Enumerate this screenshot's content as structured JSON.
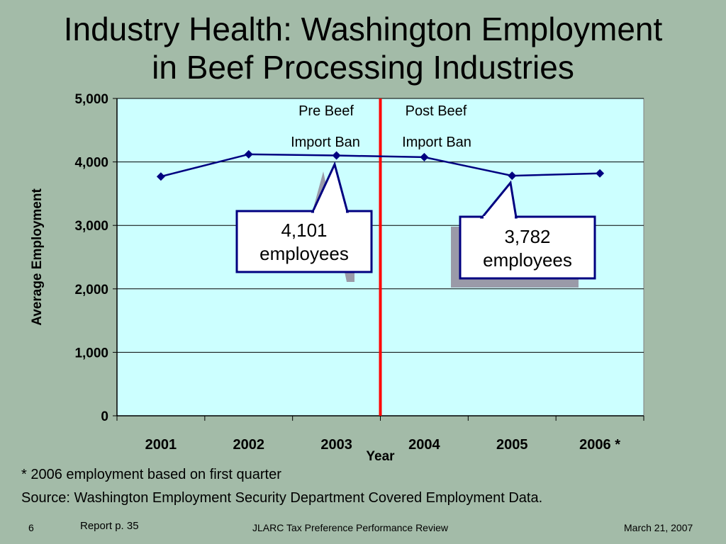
{
  "slide": {
    "title_line1": "Industry Health: Washington Employment",
    "title_line2": "in Beef Processing Industries",
    "footnote": "* 2006 employment based on first quarter",
    "source": "Source: Washington Employment Security Department Covered Employment Data.",
    "page_number": "6",
    "report_ref": "Report p. 35",
    "footer_center": "JLARC Tax Preference Performance Review",
    "footer_date": "March 21, 2007"
  },
  "chart_data": {
    "type": "line",
    "categories": [
      "2001",
      "2002",
      "2003",
      "2004",
      "2005",
      "2006 *"
    ],
    "series": [
      {
        "values": [
          3770,
          4120,
          4101,
          4075,
          3782,
          3820
        ]
      }
    ],
    "xlabel": "Year",
    "ylabel": "Average Employment",
    "ylim": [
      0,
      5000
    ],
    "yticks": [
      0,
      1000,
      2000,
      3000,
      4000,
      5000
    ],
    "ytick_labels": [
      "0",
      "1,000",
      "2,000",
      "3,000",
      "4,000",
      "5,000"
    ],
    "grid": true,
    "divider": {
      "label_pre_line1": "Pre Beef",
      "label_pre_line2": "Import Ban",
      "label_post_line1": "Post Beef",
      "label_post_line2": "Import Ban",
      "color": "#ff0000"
    },
    "callouts": [
      {
        "line1": "4,101",
        "line2": "employees"
      },
      {
        "line1": "3,782",
        "line2": "employees"
      }
    ],
    "colors": {
      "plot_bg": "#ccffff",
      "line": "#000080",
      "marker": "#000080"
    }
  }
}
